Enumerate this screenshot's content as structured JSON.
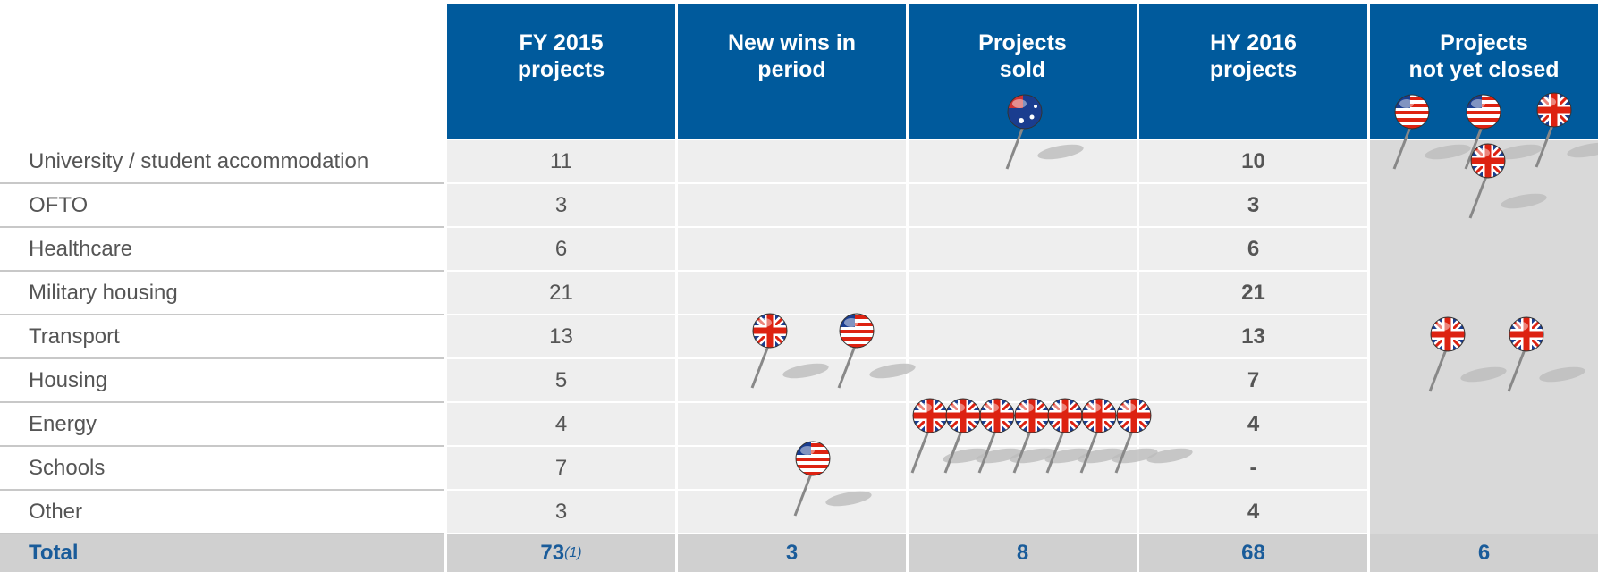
{
  "table": {
    "columns": [
      [
        "FY 2015",
        "projects"
      ],
      [
        "New wins in",
        "period"
      ],
      [
        "Projects",
        "sold"
      ],
      [
        "HY 2016",
        "projects"
      ],
      [
        "Projects",
        "not yet closed"
      ]
    ],
    "rows": [
      [
        "University / student accommodation",
        "11",
        "",
        "",
        "10",
        ""
      ],
      [
        "OFTO",
        "3",
        "",
        "",
        "3",
        ""
      ],
      [
        "Healthcare",
        "6",
        "",
        "",
        "6",
        ""
      ],
      [
        "Military housing",
        "21",
        "",
        "",
        "21",
        ""
      ],
      [
        "Transport",
        "13",
        "",
        "",
        "13",
        ""
      ],
      [
        "Housing",
        "5",
        "",
        "",
        "7",
        ""
      ],
      [
        "Energy",
        "4",
        "",
        "",
        "4",
        ""
      ],
      [
        "Schools",
        "7",
        "",
        "",
        "-",
        ""
      ],
      [
        "Other",
        "3",
        "",
        "",
        "4",
        ""
      ]
    ],
    "total": {
      "label": "Total",
      "values": [
        "73",
        "3",
        "8",
        "68",
        "6"
      ],
      "footnote_ref": "(1)"
    }
  }
}
